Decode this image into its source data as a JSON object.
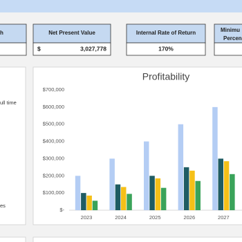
{
  "kpis": [
    {
      "title": "h"
    },
    {
      "title": "Net Present Value",
      "currency": "$",
      "value": "3,027,778"
    },
    {
      "title": "Internal Rate of Return",
      "value": "170%"
    },
    {
      "title": [
        "Minimu",
        "Percen"
      ]
    }
  ],
  "side_panel": {
    "lines": [
      "ull time",
      "es"
    ]
  },
  "chart_data": {
    "type": "bar",
    "title": "Profitability",
    "categories": [
      "2023",
      "2024",
      "2025",
      "2026",
      "2027"
    ],
    "series": [
      {
        "color": "#b4cdf4",
        "values": [
          200000,
          300000,
          400000,
          500000,
          600000
        ]
      },
      {
        "color": "#1f5c63",
        "values": [
          100000,
          150000,
          200000,
          250000,
          300000
        ]
      },
      {
        "color": "#f5c018",
        "values": [
          85000,
          135000,
          185000,
          230000,
          285000
        ]
      },
      {
        "color": "#3aa35a",
        "values": [
          55000,
          95000,
          130000,
          170000,
          210000
        ]
      }
    ],
    "ylim": [
      0,
      700000
    ],
    "yticks": [
      {
        "value": 0,
        "label": "$-"
      },
      {
        "value": 100000,
        "label": "$100,000"
      },
      {
        "value": 200000,
        "label": "$200,000"
      },
      {
        "value": 300000,
        "label": "$300,000"
      },
      {
        "value": 400000,
        "label": "$400,000"
      },
      {
        "value": 500000,
        "label": "$500,000"
      },
      {
        "value": 600000,
        "label": "$600,000"
      },
      {
        "value": 700000,
        "label": "$700,000"
      }
    ],
    "grid": false
  }
}
